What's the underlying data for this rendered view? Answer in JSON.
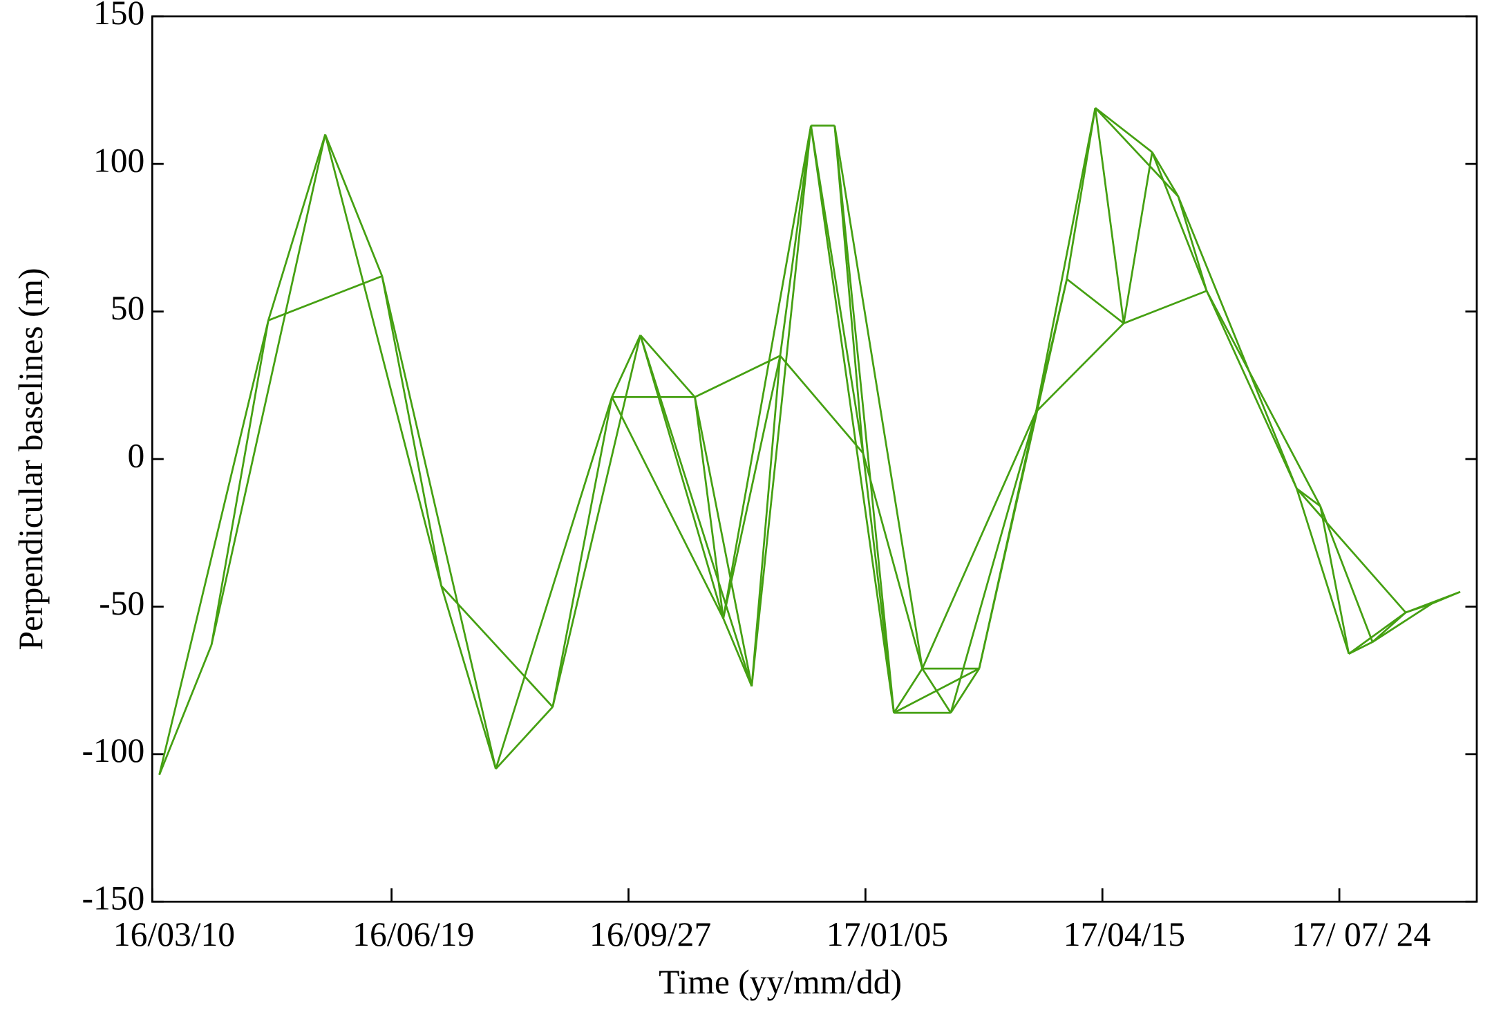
{
  "chart_data": {
    "type": "network",
    "x_label": "Time (yy/mm/dd)",
    "y_label": "Perpendicular baselines (m)",
    "color": "#45a012",
    "x": [
      "2016-03-13",
      "2016-04-04",
      "2016-04-28",
      "2016-05-22",
      "2016-06-15",
      "2016-07-10",
      "2016-08-02",
      "2016-08-26",
      "2016-09-20",
      "2016-10-02",
      "2016-10-25",
      "2016-11-06",
      "2016-11-18",
      "2016-11-30",
      "2016-12-13",
      "2016-12-23",
      "2017-01-04",
      "2017-01-17",
      "2017-01-29",
      "2017-02-10",
      "2017-02-22",
      "2017-03-18",
      "2017-03-31",
      "2017-04-12",
      "2017-04-24",
      "2017-05-06",
      "2017-05-17",
      "2017-05-29",
      "2017-07-06",
      "2017-07-16",
      "2017-07-28",
      "2017-08-07",
      "2017-08-21",
      "2017-09-01",
      "2017-09-13"
    ],
    "values": [
      -107,
      -63,
      47,
      110,
      62,
      -43,
      -105,
      -84,
      21,
      42,
      21,
      -54,
      -77,
      35,
      113,
      113,
      2,
      -86,
      -71,
      -86,
      -71,
      16,
      61,
      119,
      46,
      104,
      89,
      57,
      -10,
      -16,
      -66,
      -62,
      -52,
      -49,
      -45
    ],
    "edges": [
      [
        0,
        1
      ],
      [
        0,
        2
      ],
      [
        1,
        2
      ],
      [
        1,
        3
      ],
      [
        2,
        3
      ],
      [
        2,
        4
      ],
      [
        3,
        4
      ],
      [
        3,
        5
      ],
      [
        4,
        5
      ],
      [
        4,
        6
      ],
      [
        5,
        6
      ],
      [
        5,
        7
      ],
      [
        6,
        7
      ],
      [
        6,
        8
      ],
      [
        7,
        8
      ],
      [
        7,
        9
      ],
      [
        8,
        9
      ],
      [
        8,
        10
      ],
      [
        8,
        11
      ],
      [
        9,
        10
      ],
      [
        9,
        11
      ],
      [
        9,
        12
      ],
      [
        10,
        11
      ],
      [
        10,
        12
      ],
      [
        10,
        13
      ],
      [
        11,
        12
      ],
      [
        11,
        13
      ],
      [
        11,
        14
      ],
      [
        12,
        13
      ],
      [
        12,
        14
      ],
      [
        13,
        14
      ],
      [
        13,
        16
      ],
      [
        14,
        15
      ],
      [
        14,
        16
      ],
      [
        14,
        17
      ],
      [
        15,
        16
      ],
      [
        15,
        17
      ],
      [
        15,
        18
      ],
      [
        16,
        17
      ],
      [
        16,
        18
      ],
      [
        17,
        18
      ],
      [
        17,
        19
      ],
      [
        17,
        20
      ],
      [
        18,
        19
      ],
      [
        18,
        20
      ],
      [
        18,
        21
      ],
      [
        19,
        20
      ],
      [
        19,
        21
      ],
      [
        20,
        21
      ],
      [
        20,
        22
      ],
      [
        21,
        22
      ],
      [
        21,
        23
      ],
      [
        21,
        24
      ],
      [
        22,
        23
      ],
      [
        22,
        24
      ],
      [
        23,
        24
      ],
      [
        23,
        25
      ],
      [
        23,
        26
      ],
      [
        24,
        25
      ],
      [
        24,
        27
      ],
      [
        25,
        26
      ],
      [
        25,
        27
      ],
      [
        26,
        27
      ],
      [
        26,
        28
      ],
      [
        27,
        28
      ],
      [
        27,
        29
      ],
      [
        28,
        29
      ],
      [
        28,
        30
      ],
      [
        28,
        32
      ],
      [
        29,
        30
      ],
      [
        29,
        31
      ],
      [
        30,
        31
      ],
      [
        30,
        32
      ],
      [
        31,
        32
      ],
      [
        31,
        33
      ],
      [
        32,
        33
      ],
      [
        32,
        34
      ],
      [
        33,
        34
      ]
    ],
    "xlim": [
      "2016-03-10",
      "2017-09-20"
    ],
    "xticks": [
      {
        "value": "2016-03-10",
        "label": "16/03/10"
      },
      {
        "value": "2016-06-19",
        "label": "16/06/19"
      },
      {
        "value": "2016-09-27",
        "label": "16/09/27"
      },
      {
        "value": "2017-01-05",
        "label": "17/01/05"
      },
      {
        "value": "2017-04-15",
        "label": "17/04/15"
      },
      {
        "value": "2017-07-24",
        "label": "17/ 07/ 24"
      }
    ],
    "ylim": [
      -150,
      150
    ],
    "yticks": [
      -150,
      -100,
      -50,
      0,
      50,
      100,
      150
    ],
    "grid": false
  }
}
